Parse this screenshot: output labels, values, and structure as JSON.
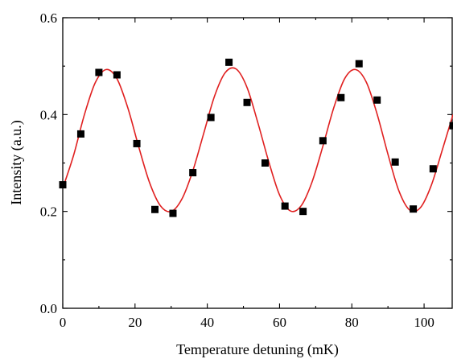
{
  "chart_data": {
    "type": "scatter",
    "title": "",
    "xlabel": "Temperature detuning (mK)",
    "ylabel": "Intensity (a.u.)",
    "xlim": [
      0,
      108
    ],
    "ylim": [
      0.0,
      0.6
    ],
    "xticks": [
      0,
      20,
      40,
      60,
      80,
      100
    ],
    "xtick_labels": [
      "0",
      "20",
      "40",
      "60",
      "80",
      "100"
    ],
    "yticks": [
      0.0,
      0.2,
      0.4,
      0.6
    ],
    "ytick_labels": [
      "0.0",
      "0.2",
      "0.4",
      "0.6"
    ],
    "grid": false,
    "legend": "none",
    "series": [
      {
        "kind": "markers",
        "marker": "square",
        "color": "#000000",
        "x": [
          0,
          5,
          10,
          15,
          20.5,
          25.5,
          30.5,
          36,
          41,
          46,
          51,
          56,
          61.5,
          66.5,
          72,
          77,
          82,
          87,
          92,
          97,
          102.5,
          108
        ],
        "y": [
          0.255,
          0.36,
          0.487,
          0.482,
          0.34,
          0.204,
          0.196,
          0.28,
          0.394,
          0.508,
          0.425,
          0.3,
          0.211,
          0.2,
          0.346,
          0.435,
          0.505,
          0.43,
          0.302,
          0.205,
          0.288,
          0.377
        ]
      },
      {
        "kind": "fit",
        "color": "#e02020",
        "x": [
          0,
          3,
          6,
          9,
          12,
          15,
          18,
          21,
          24,
          27,
          30,
          33,
          36,
          39,
          42,
          45,
          48,
          51,
          54,
          57,
          60,
          63,
          66,
          69,
          72,
          75,
          78,
          81,
          84,
          87,
          90,
          93,
          96,
          99,
          102,
          105,
          108
        ],
        "y": [
          0.248,
          0.316,
          0.4,
          0.466,
          0.493,
          0.474,
          0.414,
          0.334,
          0.26,
          0.212,
          0.2,
          0.226,
          0.284,
          0.361,
          0.438,
          0.487,
          0.494,
          0.456,
          0.383,
          0.303,
          0.234,
          0.201,
          0.212,
          0.261,
          0.335,
          0.414,
          0.474,
          0.493,
          0.467,
          0.401,
          0.318,
          0.243,
          0.203,
          0.208,
          0.254,
          0.326,
          0.4
        ]
      }
    ]
  }
}
